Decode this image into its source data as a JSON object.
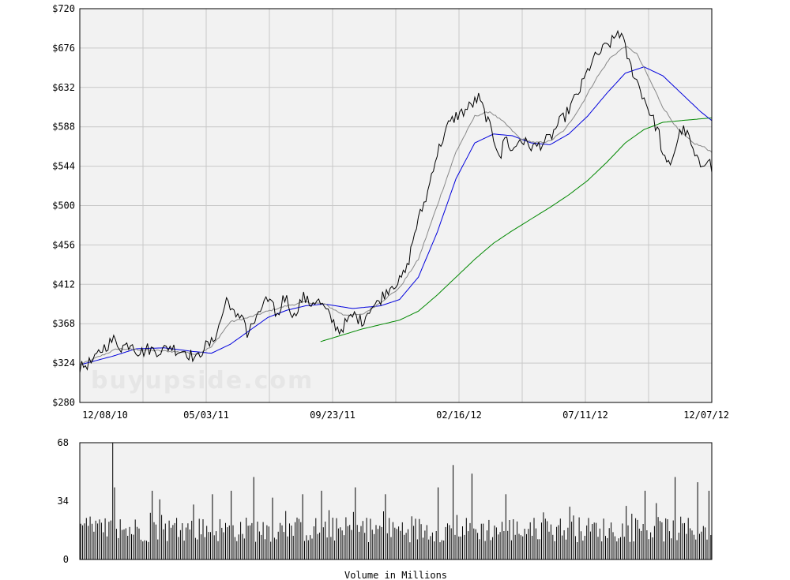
{
  "watermark": "buyupside.com",
  "colors": {
    "plot_bg": "#f2f2f2",
    "grid": "#c8c8c8",
    "price": "#000000",
    "ma_short": "#888888",
    "ma_50": "#0000dd",
    "ma_200": "#008800",
    "volume": "#000000"
  },
  "chart_data": [
    {
      "type": "line",
      "ylim": [
        280,
        720
      ],
      "yticks": [
        280,
        324,
        368,
        412,
        456,
        500,
        544,
        588,
        632,
        676,
        720
      ],
      "ytick_labels": [
        "$280",
        "$324",
        "$368",
        "$412",
        "$456",
        "$500",
        "$544",
        "$588",
        "$632",
        "$676",
        "$720"
      ],
      "xtick_labels": [
        "12/08/10",
        "05/03/11",
        "09/23/11",
        "02/16/12",
        "07/11/12",
        "12/07/12"
      ],
      "grid": true,
      "series_keyframes": {
        "price": [
          [
            0,
            318
          ],
          [
            4,
            323
          ],
          [
            8,
            327
          ],
          [
            10,
            335
          ],
          [
            12,
            340
          ],
          [
            15,
            345
          ],
          [
            18,
            350
          ],
          [
            22,
            342
          ],
          [
            26,
            345
          ],
          [
            28,
            348
          ],
          [
            30,
            338
          ],
          [
            33,
            336
          ],
          [
            36,
            340
          ],
          [
            40,
            338
          ],
          [
            44,
            338
          ],
          [
            48,
            343
          ],
          [
            52,
            338
          ],
          [
            56,
            338
          ],
          [
            58,
            334
          ],
          [
            60,
            332
          ],
          [
            62,
            328
          ],
          [
            64,
            335
          ],
          [
            66,
            342
          ],
          [
            70,
            346
          ],
          [
            74,
            365
          ],
          [
            78,
            395
          ],
          [
            80,
            390
          ],
          [
            83,
            372
          ],
          [
            87,
            380
          ],
          [
            89,
            355
          ],
          [
            92,
            368
          ],
          [
            95,
            375
          ],
          [
            98,
            395
          ],
          [
            100,
            392
          ],
          [
            103,
            385
          ],
          [
            106,
            375
          ],
          [
            108,
            400
          ],
          [
            110,
            395
          ],
          [
            112,
            385
          ],
          [
            114,
            375
          ],
          [
            116,
            388
          ],
          [
            119,
            398
          ],
          [
            122,
            390
          ],
          [
            126,
            395
          ],
          [
            130,
            385
          ],
          [
            134,
            372
          ],
          [
            138,
            360
          ],
          [
            142,
            370
          ],
          [
            146,
            378
          ],
          [
            150,
            370
          ],
          [
            154,
            385
          ],
          [
            158,
            390
          ],
          [
            162,
            402
          ],
          [
            166,
            412
          ],
          [
            170,
            415
          ],
          [
            174,
            430
          ],
          [
            178,
            470
          ],
          [
            181,
            490
          ],
          [
            185,
            515
          ],
          [
            188,
            545
          ],
          [
            192,
            570
          ],
          [
            196,
            590
          ],
          [
            200,
            600
          ],
          [
            204,
            605
          ],
          [
            208,
            612
          ],
          [
            212,
            620
          ],
          [
            216,
            600
          ],
          [
            220,
            575
          ],
          [
            222,
            565
          ],
          [
            224,
            555
          ],
          [
            226,
            578
          ],
          [
            230,
            560
          ],
          [
            234,
            575
          ],
          [
            238,
            568
          ],
          [
            242,
            565
          ],
          [
            246,
            570
          ],
          [
            250,
            575
          ],
          [
            254,
            590
          ],
          [
            258,
            600
          ],
          [
            262,
            615
          ],
          [
            266,
            630
          ],
          [
            268,
            640
          ],
          [
            272,
            660
          ],
          [
            276,
            670
          ],
          [
            280,
            678
          ],
          [
            284,
            685
          ],
          [
            286,
            695
          ],
          [
            288,
            690
          ],
          [
            292,
            660
          ],
          [
            296,
            640
          ],
          [
            300,
            620
          ],
          [
            304,
            600
          ],
          [
            308,
            580
          ],
          [
            310,
            555
          ],
          [
            312,
            545
          ],
          [
            314,
            548
          ],
          [
            316,
            560
          ],
          [
            318,
            575
          ],
          [
            320,
            585
          ],
          [
            322,
            582
          ],
          [
            324,
            575
          ],
          [
            326,
            560
          ],
          [
            328,
            550
          ],
          [
            330,
            545
          ],
          [
            332,
            550
          ],
          [
            334,
            555
          ],
          [
            336,
            540
          ]
        ],
        "ma_short": [
          [
            0,
            322
          ],
          [
            20,
            340
          ],
          [
            40,
            338
          ],
          [
            56,
            336
          ],
          [
            62,
            334
          ],
          [
            70,
            342
          ],
          [
            80,
            370
          ],
          [
            90,
            375
          ],
          [
            100,
            382
          ],
          [
            110,
            388
          ],
          [
            120,
            392
          ],
          [
            130,
            390
          ],
          [
            140,
            378
          ],
          [
            150,
            378
          ],
          [
            160,
            392
          ],
          [
            170,
            408
          ],
          [
            180,
            440
          ],
          [
            190,
            500
          ],
          [
            200,
            560
          ],
          [
            210,
            600
          ],
          [
            218,
            605
          ],
          [
            226,
            592
          ],
          [
            234,
            575
          ],
          [
            242,
            570
          ],
          [
            250,
            572
          ],
          [
            258,
            585
          ],
          [
            266,
            610
          ],
          [
            274,
            640
          ],
          [
            282,
            665
          ],
          [
            290,
            678
          ],
          [
            296,
            670
          ],
          [
            302,
            645
          ],
          [
            310,
            610
          ],
          [
            318,
            585
          ],
          [
            326,
            570
          ],
          [
            332,
            565
          ],
          [
            336,
            560
          ]
        ],
        "ma_50": [
          [
            0,
            322
          ],
          [
            18,
            332
          ],
          [
            30,
            340
          ],
          [
            45,
            341
          ],
          [
            60,
            337
          ],
          [
            70,
            335
          ],
          [
            80,
            345
          ],
          [
            90,
            360
          ],
          [
            100,
            375
          ],
          [
            110,
            383
          ],
          [
            120,
            388
          ],
          [
            130,
            390
          ],
          [
            145,
            385
          ],
          [
            160,
            388
          ],
          [
            170,
            395
          ],
          [
            180,
            420
          ],
          [
            190,
            470
          ],
          [
            200,
            530
          ],
          [
            210,
            570
          ],
          [
            220,
            580
          ],
          [
            230,
            578
          ],
          [
            240,
            570
          ],
          [
            250,
            568
          ],
          [
            260,
            580
          ],
          [
            270,
            600
          ],
          [
            280,
            625
          ],
          [
            290,
            648
          ],
          [
            300,
            655
          ],
          [
            310,
            645
          ],
          [
            320,
            625
          ],
          [
            330,
            605
          ],
          [
            336,
            595
          ]
        ],
        "ma_200": [
          [
            128,
            348
          ],
          [
            150,
            362
          ],
          [
            170,
            372
          ],
          [
            180,
            382
          ],
          [
            190,
            400
          ],
          [
            200,
            420
          ],
          [
            210,
            440
          ],
          [
            220,
            458
          ],
          [
            230,
            472
          ],
          [
            240,
            485
          ],
          [
            250,
            498
          ],
          [
            260,
            512
          ],
          [
            270,
            528
          ],
          [
            280,
            548
          ],
          [
            290,
            570
          ],
          [
            300,
            585
          ],
          [
            310,
            593
          ],
          [
            320,
            595
          ],
          [
            336,
            598
          ]
        ]
      }
    },
    {
      "type": "bar",
      "title": "Volume in Millions",
      "ylim": [
        0,
        68
      ],
      "yticks": [
        0,
        34,
        68
      ],
      "ytick_labels": [
        "0",
        "34",
        "68"
      ],
      "typical_range": [
        10,
        25
      ],
      "spikes": [
        [
          17,
          68
        ],
        [
          18,
          42
        ],
        [
          38,
          40
        ],
        [
          42,
          35
        ],
        [
          60,
          32
        ],
        [
          70,
          38
        ],
        [
          80,
          40
        ],
        [
          92,
          48
        ],
        [
          102,
          36
        ],
        [
          118,
          38
        ],
        [
          128,
          40
        ],
        [
          146,
          42
        ],
        [
          162,
          38
        ],
        [
          190,
          42
        ],
        [
          198,
          55
        ],
        [
          208,
          50
        ],
        [
          226,
          38
        ],
        [
          254,
          20
        ],
        [
          276,
          18
        ],
        [
          300,
          40
        ],
        [
          316,
          48
        ],
        [
          328,
          45
        ],
        [
          334,
          40
        ]
      ]
    }
  ]
}
